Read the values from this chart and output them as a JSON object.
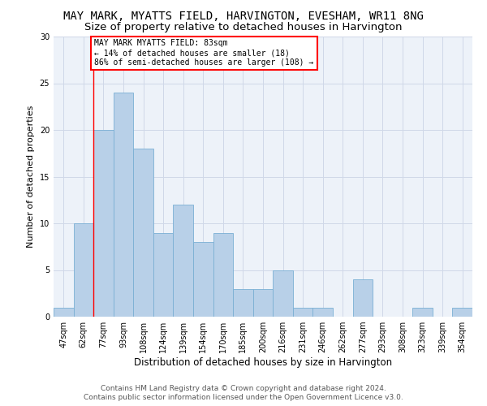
{
  "title": "MAY MARK, MYATTS FIELD, HARVINGTON, EVESHAM, WR11 8NG",
  "subtitle": "Size of property relative to detached houses in Harvington",
  "xlabel": "Distribution of detached houses by size in Harvington",
  "ylabel": "Number of detached properties",
  "bar_labels": [
    "47sqm",
    "62sqm",
    "77sqm",
    "93sqm",
    "108sqm",
    "124sqm",
    "139sqm",
    "154sqm",
    "170sqm",
    "185sqm",
    "200sqm",
    "216sqm",
    "231sqm",
    "246sqm",
    "262sqm",
    "277sqm",
    "293sqm",
    "308sqm",
    "323sqm",
    "339sqm",
    "354sqm"
  ],
  "bar_values": [
    1,
    10,
    20,
    24,
    18,
    9,
    12,
    8,
    9,
    3,
    3,
    5,
    1,
    1,
    0,
    4,
    0,
    0,
    1,
    0,
    1
  ],
  "bar_color": "#b8d0e8",
  "bar_edgecolor": "#7aafd4",
  "annotation_text": "MAY MARK MYATTS FIELD: 83sqm\n← 14% of detached houses are smaller (18)\n86% of semi-detached houses are larger (108) →",
  "annotation_box_color": "white",
  "annotation_box_edgecolor": "red",
  "vline_x": 1.5,
  "vline_color": "red",
  "ylim": [
    0,
    30
  ],
  "yticks": [
    0,
    5,
    10,
    15,
    20,
    25,
    30
  ],
  "grid_color": "#d0d8e8",
  "background_color": "#edf2f9",
  "footer1": "Contains HM Land Registry data © Crown copyright and database right 2024.",
  "footer2": "Contains public sector information licensed under the Open Government Licence v3.0.",
  "title_fontsize": 10,
  "subtitle_fontsize": 9.5,
  "xlabel_fontsize": 8.5,
  "ylabel_fontsize": 8,
  "tick_fontsize": 7,
  "footer_fontsize": 6.5
}
